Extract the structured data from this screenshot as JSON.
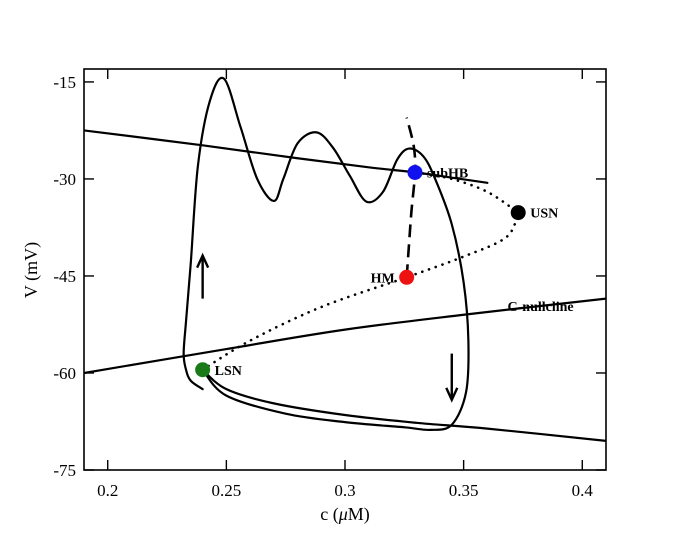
{
  "chart_data": {
    "type": "line",
    "xlabel_parts": [
      "c (",
      "μ",
      "M)"
    ],
    "ylabel": "V (mV)",
    "xlim": [
      0.19,
      0.41
    ],
    "ylim": [
      -75,
      -13
    ],
    "x_ticks": [
      0.2,
      0.25,
      0.3,
      0.35,
      0.4
    ],
    "x_tick_labels": [
      "0.2",
      "0.25",
      "0.3",
      "0.35",
      "0.4"
    ],
    "y_ticks": [
      -15,
      -30,
      -45,
      -60,
      -75
    ],
    "y_tick_labels": [
      "-15",
      "-30",
      "-45",
      "-60",
      "-75"
    ],
    "grid": false,
    "curves": [
      {
        "id": "v-nullcline-upper",
        "style": "solid",
        "points": [
          [
            0.19,
            -22.5
          ],
          [
            0.24,
            -24.8
          ],
          [
            0.28,
            -26.8
          ],
          [
            0.31,
            -28.2
          ],
          [
            0.33,
            -29.0
          ],
          [
            0.345,
            -29.8
          ],
          [
            0.36,
            -30.6
          ]
        ]
      },
      {
        "id": "v-nullcline-lower",
        "style": "solid",
        "points": [
          [
            0.24,
            -59.5
          ],
          [
            0.25,
            -62.5
          ],
          [
            0.27,
            -64.7
          ],
          [
            0.3,
            -66.5
          ],
          [
            0.33,
            -67.7
          ],
          [
            0.36,
            -68.6
          ],
          [
            0.41,
            -70.5
          ]
        ]
      },
      {
        "id": "c-nullcline",
        "style": "solid",
        "points": [
          [
            0.19,
            -60.0
          ],
          [
            0.25,
            -56.3
          ],
          [
            0.3,
            -53.3
          ],
          [
            0.35,
            -51.0
          ],
          [
            0.41,
            -48.5
          ]
        ]
      },
      {
        "id": "unstable-branch-lower",
        "style": "dotted",
        "points": [
          [
            0.24,
            -59.5
          ],
          [
            0.26,
            -55.0
          ],
          [
            0.29,
            -49.8
          ],
          [
            0.326,
            -45.2
          ],
          [
            0.35,
            -42.0
          ],
          [
            0.368,
            -39.0
          ],
          [
            0.373,
            -35.2
          ]
        ]
      },
      {
        "id": "unstable-branch-upper",
        "style": "dotted",
        "points": [
          [
            0.33,
            -29.0
          ],
          [
            0.345,
            -30.0
          ],
          [
            0.36,
            -32.0
          ],
          [
            0.373,
            -35.2
          ]
        ]
      },
      {
        "id": "periodic-orbit-branch",
        "style": "dashed",
        "points": [
          [
            0.326,
            -45.2
          ],
          [
            0.327,
            -40.0
          ],
          [
            0.328,
            -35.0
          ],
          [
            0.3295,
            -29.0
          ],
          [
            0.329,
            -25.0
          ],
          [
            0.326,
            -20.5
          ]
        ]
      },
      {
        "id": "trajectory",
        "style": "solid",
        "points": [
          [
            0.24,
            -59.5
          ],
          [
            0.25,
            -63.5
          ],
          [
            0.275,
            -66.3
          ],
          [
            0.3,
            -67.6
          ],
          [
            0.325,
            -68.4
          ],
          [
            0.336,
            -68.8
          ],
          [
            0.345,
            -68.0
          ],
          [
            0.351,
            -63.0
          ],
          [
            0.352,
            -55.0
          ],
          [
            0.35,
            -46.0
          ],
          [
            0.345,
            -37.0
          ],
          [
            0.338,
            -30.0
          ],
          [
            0.333,
            -26.5
          ],
          [
            0.327,
            -25.3
          ],
          [
            0.322,
            -27.0
          ],
          [
            0.316,
            -32.0
          ],
          [
            0.309,
            -33.5
          ],
          [
            0.302,
            -29.5
          ],
          [
            0.295,
            -25.2
          ],
          [
            0.288,
            -22.8
          ],
          [
            0.28,
            -24.5
          ],
          [
            0.274,
            -30.0
          ],
          [
            0.27,
            -33.4
          ],
          [
            0.263,
            -30.0
          ],
          [
            0.256,
            -22.0
          ],
          [
            0.249,
            -14.5
          ],
          [
            0.243,
            -18.0
          ],
          [
            0.238,
            -28.0
          ],
          [
            0.235,
            -43.0
          ],
          [
            0.233,
            -52.0
          ],
          [
            0.232,
            -57.0
          ],
          [
            0.233,
            -59.5
          ],
          [
            0.235,
            -61.2
          ],
          [
            0.24,
            -62.5
          ]
        ]
      }
    ],
    "arrows": [
      {
        "id": "arrow-up",
        "from": [
          0.24,
          -48.5
        ],
        "to": [
          0.24,
          -42.0
        ]
      },
      {
        "id": "arrow-down",
        "from": [
          0.345,
          -57.0
        ],
        "to": [
          0.345,
          -64.0
        ]
      }
    ],
    "points": [
      {
        "label": "LSN",
        "x": 0.24,
        "y": -59.5,
        "color": "#1a7a1a",
        "label_side": "right"
      },
      {
        "label": "HM",
        "x": 0.326,
        "y": -45.2,
        "color": "#ee1111",
        "label_side": "left"
      },
      {
        "label": "subHB",
        "x": 0.3295,
        "y": -29.0,
        "color": "#1111ee",
        "label_side": "right"
      },
      {
        "label": "USN",
        "x": 0.373,
        "y": -35.2,
        "color": "#000000",
        "label_side": "right"
      }
    ],
    "annotations": [
      {
        "text": "C-nullcline",
        "x": 0.3685,
        "y": -50.4
      }
    ]
  }
}
